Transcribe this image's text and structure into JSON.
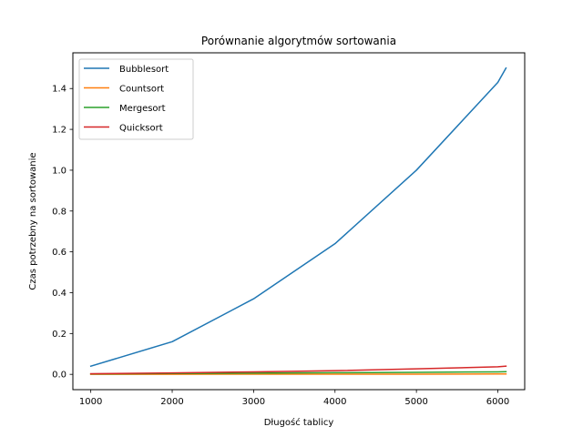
{
  "chart_data": {
    "type": "line",
    "title": "Porównanie algorytmów sortowania",
    "xlabel": "Długość tablicy",
    "ylabel": "Czas potrzebny na sortowanie",
    "xlim": [
      780,
      6330
    ],
    "ylim": [
      -0.075,
      1.575
    ],
    "xticks": [
      1000,
      2000,
      3000,
      4000,
      5000,
      6000
    ],
    "yticks": [
      0.0,
      0.2,
      0.4,
      0.6,
      0.8,
      1.0,
      1.2,
      1.4
    ],
    "ytick_labels": [
      "0.0",
      "0.2",
      "0.4",
      "0.6",
      "0.8",
      "1.0",
      "1.2",
      "1.4"
    ],
    "grid": false,
    "legend_position": "top-left",
    "x": [
      1000,
      2000,
      3000,
      4000,
      5000,
      6000,
      6100
    ],
    "series": [
      {
        "name": "Bubblesort",
        "color": "#1f77b4",
        "values": [
          0.04,
          0.16,
          0.37,
          0.64,
          1.0,
          1.43,
          1.5
        ]
      },
      {
        "name": "Countsort",
        "color": "#ff7f0e",
        "values": [
          0.0,
          0.0,
          0.001,
          0.001,
          0.001,
          0.002,
          0.002
        ]
      },
      {
        "name": "Mergesort",
        "color": "#2ca02c",
        "values": [
          0.002,
          0.004,
          0.006,
          0.008,
          0.01,
          0.012,
          0.013
        ]
      },
      {
        "name": "Quicksort",
        "color": "#d62728",
        "values": [
          0.003,
          0.007,
          0.012,
          0.018,
          0.027,
          0.037,
          0.04
        ]
      }
    ]
  }
}
